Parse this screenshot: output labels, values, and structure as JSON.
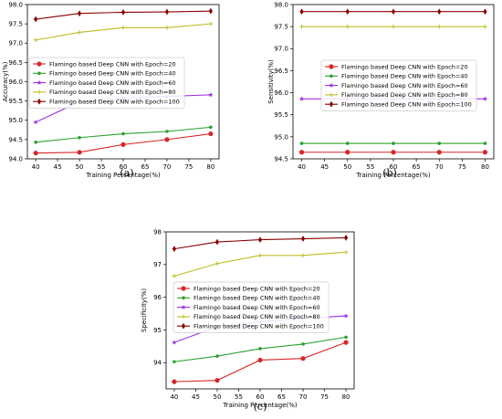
{
  "chart_data": [
    {
      "type": "line",
      "panel_label": "(a)",
      "xlabel": "Training Percentage(%)",
      "ylabel": "Accuracy(%)",
      "x": [
        40,
        50,
        60,
        70,
        80
      ],
      "xticks": [
        "40",
        "45",
        "50",
        "55",
        "60",
        "65",
        "70",
        "75",
        "80"
      ],
      "yticks": [
        "94.0",
        "94.5",
        "95.0",
        "95.5",
        "96.0",
        "96.5",
        "97.0",
        "97.5",
        "98.0"
      ],
      "xlim": [
        38.1,
        81.9
      ],
      "ylim": [
        94.0,
        98.0
      ],
      "legend": "center-left",
      "series": [
        {
          "name": "Flamingo based Deep CNN with Epoch=20",
          "color": "#d62728",
          "marker": "circle",
          "values": [
            94.15,
            94.17,
            94.37,
            94.5,
            94.65
          ]
        },
        {
          "name": "Flamingo based Deep CNN with Epoch=40",
          "color": "#2ca02c",
          "marker": "dot",
          "values": [
            94.43,
            94.55,
            94.65,
            94.71,
            94.82
          ]
        },
        {
          "name": "Flamingo based Deep CNN with Epoch=60",
          "color": "#9b30e0",
          "marker": "star",
          "values": [
            94.95,
            95.48,
            95.58,
            95.62,
            95.66
          ]
        },
        {
          "name": "Flamingo based Deep CNN with Epoch=80",
          "color": "#bcbd22",
          "marker": "plus",
          "values": [
            97.08,
            97.28,
            97.4,
            97.4,
            97.5
          ]
        },
        {
          "name": "Flamingo based Deep CNN with Epoch=100",
          "color": "#8b0000",
          "marker": "diamond",
          "values": [
            97.62,
            97.77,
            97.8,
            97.81,
            97.83
          ]
        }
      ]
    },
    {
      "type": "line",
      "panel_label": "(b)",
      "xlabel": "Training Percentage(%)",
      "ylabel": "Sensitivity(%)",
      "x": [
        40,
        50,
        60,
        70,
        80
      ],
      "xticks": [
        "40",
        "45",
        "50",
        "55",
        "60",
        "65",
        "70",
        "75",
        "80"
      ],
      "yticks": [
        "94.5",
        "95.0",
        "95.5",
        "96.0",
        "96.5",
        "97.0",
        "97.5",
        "98.0"
      ],
      "xlim": [
        38.1,
        81.9
      ],
      "ylim": [
        94.5,
        98.0
      ],
      "legend": "center",
      "series": [
        {
          "name": "Flamingo based Deep CNN with Epoch=20",
          "color": "#d62728",
          "marker": "circle",
          "values": [
            94.65,
            94.65,
            94.65,
            94.65,
            94.65
          ]
        },
        {
          "name": "Flamingo based Deep CNN with Epoch=40",
          "color": "#2ca02c",
          "marker": "dot",
          "values": [
            94.85,
            94.85,
            94.85,
            94.85,
            94.85
          ]
        },
        {
          "name": "Flamingo based Deep CNN with Epoch=60",
          "color": "#9b30e0",
          "marker": "star",
          "values": [
            95.86,
            95.86,
            95.86,
            95.86,
            95.86
          ]
        },
        {
          "name": "Flamingo based Deep CNN with Epoch=80",
          "color": "#bcbd22",
          "marker": "plus",
          "values": [
            97.5,
            97.5,
            97.5,
            97.5,
            97.5
          ]
        },
        {
          "name": "Flamingo based Deep CNN with Epoch=100",
          "color": "#8b0000",
          "marker": "diamond",
          "values": [
            97.84,
            97.84,
            97.84,
            97.84,
            97.84
          ]
        }
      ]
    },
    {
      "type": "line",
      "panel_label": "(c)",
      "xlabel": "Training Percentage(%)",
      "ylabel": "Specificity(%)",
      "x": [
        40,
        50,
        60,
        70,
        80
      ],
      "xticks": [
        "40",
        "45",
        "50",
        "55",
        "60",
        "65",
        "70",
        "75",
        "80"
      ],
      "yticks": [
        "94",
        "95",
        "96",
        "97",
        "98"
      ],
      "xlim": [
        38.1,
        81.9
      ],
      "ylim": [
        93.2,
        98.0
      ],
      "legend": "center",
      "series": [
        {
          "name": "Flamingo based Deep CNN with Epoch=20",
          "color": "#d62728",
          "marker": "circle",
          "values": [
            93.42,
            93.46,
            94.08,
            94.13,
            94.62
          ]
        },
        {
          "name": "Flamingo based Deep CNN with Epoch=40",
          "color": "#2ca02c",
          "marker": "dot",
          "values": [
            94.03,
            94.2,
            94.43,
            94.57,
            94.78
          ]
        },
        {
          "name": "Flamingo based Deep CNN with Epoch=60",
          "color": "#9b30e0",
          "marker": "star",
          "values": [
            94.62,
            95.1,
            95.25,
            95.35,
            95.43
          ]
        },
        {
          "name": "Flamingo based Deep CNN with Epoch=80",
          "color": "#bcbd22",
          "marker": "plus",
          "values": [
            96.65,
            97.03,
            97.28,
            97.28,
            97.38
          ]
        },
        {
          "name": "Flamingo based Deep CNN with Epoch=100",
          "color": "#8b0000",
          "marker": "diamond",
          "values": [
            97.48,
            97.69,
            97.76,
            97.79,
            97.82
          ]
        }
      ]
    }
  ]
}
